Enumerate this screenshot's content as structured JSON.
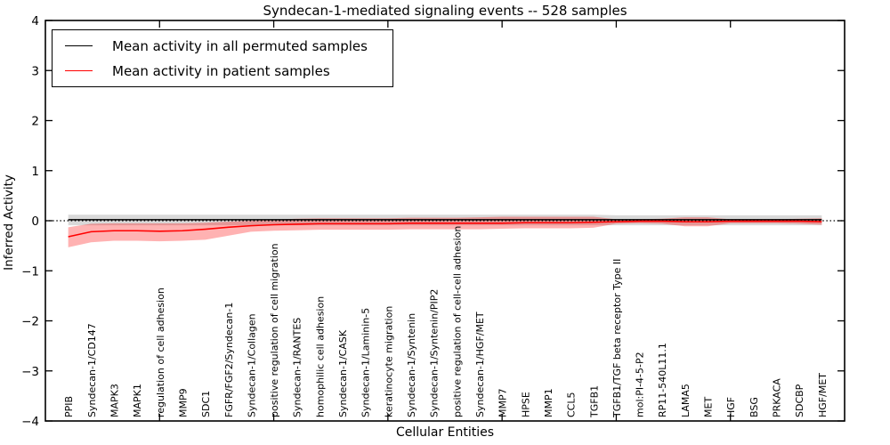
{
  "chart_data": {
    "type": "line",
    "title": "Syndecan-1-mediated signaling events -- 528 samples",
    "xlabel": "Cellular Entities",
    "ylabel": "Inferred Activity",
    "ylim": [
      -4,
      4
    ],
    "ytick_values": [
      4,
      3,
      2,
      1,
      0,
      -1,
      -2,
      -3,
      -4
    ],
    "ytick_labels": [
      "4",
      "3",
      "2",
      "1",
      "0",
      "−1",
      "−2",
      "−3",
      "−4"
    ],
    "xtick_units": [
      5,
      10,
      15,
      20,
      25,
      30
    ],
    "grid": false,
    "zero_line": true,
    "legend_position": "upper left",
    "categories": [
      "PPIB",
      "Syndecan-1/CD147",
      "MAPK3",
      "MAPK1",
      "regulation of cell adhesion",
      "MMP9",
      "SDC1",
      "FGFR/FGF2/Syndecan-1",
      "Syndecan-1/Collagen",
      "positive regulation of cell migration",
      "Syndecan-1/RANTES",
      "homophilic cell adhesion",
      "Syndecan-1/CASK",
      "Syndecan-1/Laminin-5",
      "keratinocyte migration",
      "Syndecan-1/Syntenin",
      "Syndecan-1/Syntenin/PIP2",
      "positive regulation of cell-cell adhesion",
      "Syndecan-1/HGF/MET",
      "MMP7",
      "HPSE",
      "MMP1",
      "CCL5",
      "TGFB1",
      "TGFB1/TGF beta receptor Type II",
      "mol:PI-4-5-P2",
      "RP11-540L11.1",
      "LAMA5",
      "MET",
      "HGF",
      "BSG",
      "PRKACA",
      "SDCBP",
      "HGF/MET"
    ],
    "series": [
      {
        "name": "Mean activity in all permuted samples",
        "color": "#000000",
        "values": [
          0.02,
          0.02,
          0.02,
          0.02,
          0.02,
          0.02,
          0.02,
          0.02,
          0.02,
          0.02,
          0.02,
          0.02,
          0.02,
          0.02,
          0.02,
          0.02,
          0.02,
          0.02,
          0.02,
          0.02,
          0.02,
          0.02,
          0.02,
          0.02,
          0.02,
          0.02,
          0.02,
          0.02,
          0.02,
          0.02,
          0.02,
          0.02,
          0.02,
          0.02
        ],
        "band": {
          "color": "#aaaaaa",
          "opacity": 0.45,
          "hi": [
            0.12,
            0.12,
            0.12,
            0.12,
            0.12,
            0.12,
            0.12,
            0.12,
            0.12,
            0.12,
            0.12,
            0.12,
            0.12,
            0.12,
            0.12,
            0.12,
            0.12,
            0.12,
            0.12,
            0.12,
            0.12,
            0.12,
            0.12,
            0.12,
            0.11,
            0.11,
            0.11,
            0.11,
            0.11,
            0.11,
            0.11,
            0.11,
            0.11,
            0.11
          ],
          "lo": [
            -0.09,
            -0.09,
            -0.09,
            -0.09,
            -0.09,
            -0.09,
            -0.09,
            -0.09,
            -0.09,
            -0.09,
            -0.09,
            -0.09,
            -0.09,
            -0.09,
            -0.09,
            -0.09,
            -0.09,
            -0.09,
            -0.09,
            -0.09,
            -0.09,
            -0.09,
            -0.09,
            -0.09,
            -0.09,
            -0.09,
            -0.09,
            -0.09,
            -0.09,
            -0.09,
            -0.09,
            -0.09,
            -0.09,
            -0.09
          ]
        }
      },
      {
        "name": "Mean activity in patient samples",
        "color": "#ff0000",
        "values": [
          -0.32,
          -0.22,
          -0.2,
          -0.2,
          -0.21,
          -0.2,
          -0.17,
          -0.13,
          -0.1,
          -0.08,
          -0.07,
          -0.06,
          -0.06,
          -0.06,
          -0.06,
          -0.05,
          -0.05,
          -0.05,
          -0.05,
          -0.05,
          -0.04,
          -0.04,
          -0.04,
          -0.03,
          -0.02,
          -0.01,
          -0.01,
          -0.02,
          -0.02,
          -0.01,
          -0.01,
          -0.01,
          -0.01,
          -0.02
        ],
        "band": {
          "color": "#ff0000",
          "opacity": 0.3,
          "hi": [
            -0.13,
            -0.06,
            -0.05,
            -0.05,
            -0.05,
            -0.05,
            -0.04,
            -0.02,
            0.0,
            0.02,
            0.04,
            0.05,
            0.05,
            0.05,
            0.05,
            0.06,
            0.06,
            0.06,
            0.07,
            0.08,
            0.08,
            0.08,
            0.08,
            0.08,
            0.03,
            0.03,
            0.04,
            0.07,
            0.07,
            0.03,
            0.03,
            0.03,
            0.04,
            0.05
          ],
          "lo": [
            -0.53,
            -0.43,
            -0.4,
            -0.4,
            -0.41,
            -0.4,
            -0.38,
            -0.3,
            -0.22,
            -0.2,
            -0.19,
            -0.18,
            -0.18,
            -0.18,
            -0.18,
            -0.17,
            -0.17,
            -0.17,
            -0.17,
            -0.16,
            -0.15,
            -0.15,
            -0.15,
            -0.14,
            -0.06,
            -0.05,
            -0.06,
            -0.11,
            -0.11,
            -0.05,
            -0.05,
            -0.05,
            -0.06,
            -0.08
          ]
        }
      }
    ]
  }
}
